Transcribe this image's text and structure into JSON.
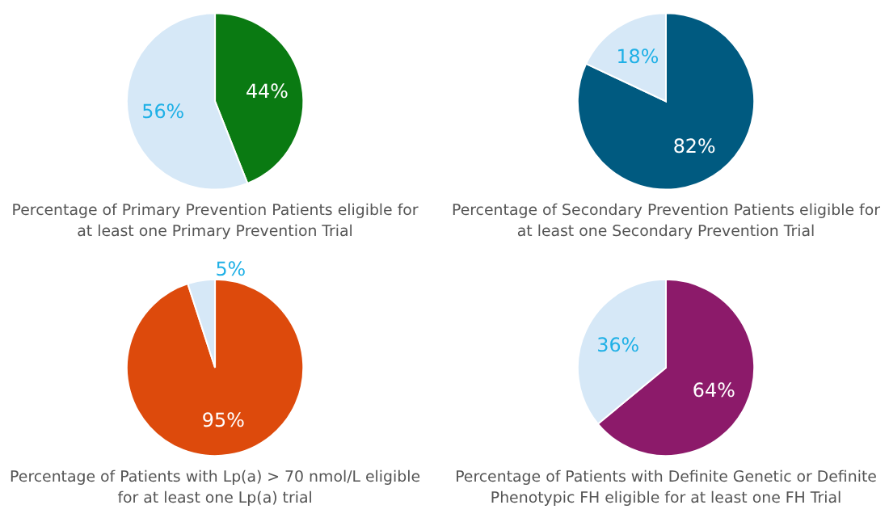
{
  "chart_data": [
    {
      "type": "pie",
      "title": "Percentage of Primary Prevention Patients eligible for at least one Primary Prevention Trial",
      "categories": [
        null,
        null
      ],
      "values": [
        44,
        56
      ],
      "colors": [
        "#0a7a12",
        "#d6e8f7"
      ],
      "value_labels": [
        "44%",
        "56%"
      ]
    },
    {
      "type": "pie",
      "title": "Percentage of Secondary Prevention Patients eligible for at least one Secondary Prevention Trial",
      "categories": [
        null,
        null
      ],
      "values": [
        82,
        18
      ],
      "colors": [
        "#005a80",
        "#d6e8f7"
      ],
      "value_labels": [
        "82%",
        "18%"
      ]
    },
    {
      "type": "pie",
      "title": "Percentage of Patients with Lp(a) > 70 nmol/L eligible for at least one Lp(a) trial",
      "categories": [
        null,
        null
      ],
      "values": [
        95,
        5
      ],
      "colors": [
        "#dd4a0c",
        "#d6e8f7"
      ],
      "value_labels": [
        "95%",
        "5%"
      ]
    },
    {
      "type": "pie",
      "title": "Percentage of Patients with Definite Genetic or Definite Phenotypic FH eligible for at least one FH Trial",
      "categories": [
        null,
        null
      ],
      "values": [
        64,
        36
      ],
      "colors": [
        "#8c1a6a",
        "#d6e8f7"
      ],
      "value_labels": [
        "64%",
        "36%"
      ]
    }
  ]
}
